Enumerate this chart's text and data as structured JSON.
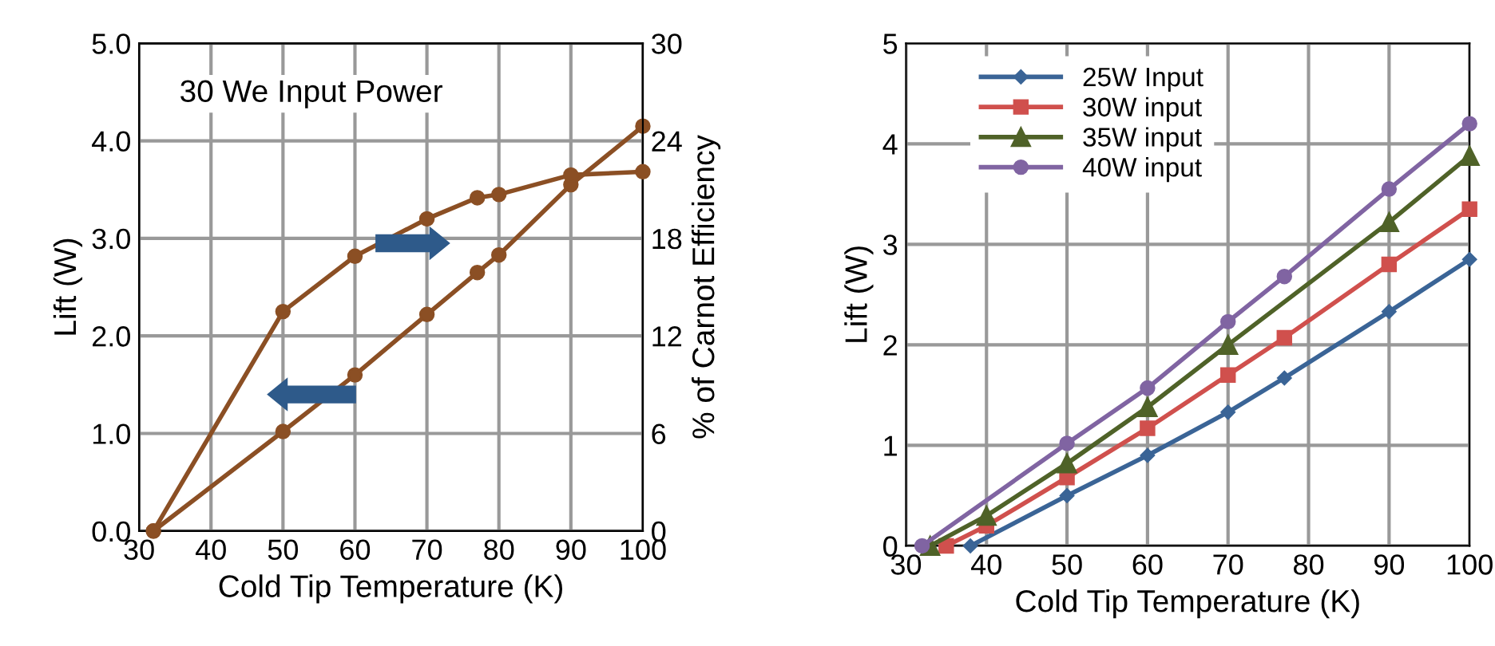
{
  "chart_data": [
    {
      "type": "line",
      "xlabel": "Cold Tip Temperature (K)",
      "ylabel": "Lift (W)",
      "y2label": "% of Carnot Efficiency",
      "annotations": [
        "30 We Input Power"
      ],
      "xlim": [
        30,
        100
      ],
      "xticks": [
        30,
        40,
        50,
        60,
        70,
        80,
        90,
        100
      ],
      "ylim": [
        0,
        5
      ],
      "yticks": [
        {
          "value": 0,
          "label": "0.0"
        },
        {
          "value": 1,
          "label": "1.0"
        },
        {
          "value": 2,
          "label": "2.0"
        },
        {
          "value": 3,
          "label": "3.0"
        },
        {
          "value": 4,
          "label": "4.0"
        },
        {
          "value": 5,
          "label": "5.0"
        }
      ],
      "y2lim": [
        0,
        30
      ],
      "y2ticks": [
        0,
        6,
        12,
        18,
        24,
        30
      ],
      "grid": true,
      "marker": "circle",
      "series": [
        {
          "color": "#8b4f24",
          "x": [
            32,
            50,
            60,
            70,
            77,
            80,
            90,
            100
          ],
          "values": [
            0,
            1.02,
            1.6,
            2.22,
            2.65,
            2.83,
            3.55,
            4.15
          ]
        },
        {
          "color": "#8b4f24",
          "axis": "y2",
          "x": [
            32,
            50,
            60,
            70,
            77,
            80,
            90,
            100
          ],
          "values": [
            0,
            13.5,
            16.9,
            19.2,
            20.5,
            20.7,
            21.9,
            22.1
          ]
        }
      ]
    },
    {
      "type": "line",
      "xlabel": "Cold Tip Temperature (K)",
      "ylabel": "Lift (W)",
      "xlim": [
        30,
        100
      ],
      "xticks": [
        30,
        40,
        50,
        60,
        70,
        80,
        90,
        100
      ],
      "ylim": [
        0,
        5
      ],
      "yticks": [
        0,
        1,
        2,
        3,
        4,
        5
      ],
      "grid": true,
      "legend": "top left",
      "series": [
        {
          "name": "25W Input",
          "color": "#3a6496",
          "marker": "diamond",
          "x": [
            38,
            50,
            60,
            70,
            77,
            90,
            100
          ],
          "values": [
            0,
            0.5,
            0.9,
            1.33,
            1.67,
            2.33,
            2.85
          ]
        },
        {
          "name": "30W input",
          "color": "#d0504d",
          "marker": "square",
          "x": [
            35,
            40,
            50,
            60,
            70,
            77,
            90,
            100
          ],
          "values": [
            0,
            0.2,
            0.68,
            1.17,
            1.7,
            2.07,
            2.8,
            3.35
          ]
        },
        {
          "name": "35W input",
          "color": "#4f6228",
          "marker": "triangle",
          "x": [
            33,
            40,
            50,
            60,
            70,
            90,
            100
          ],
          "values": [
            0,
            0.3,
            0.82,
            1.38,
            2.0,
            3.22,
            3.88
          ]
        },
        {
          "name": "40W input",
          "color": "#8064a2",
          "marker": "circle",
          "x": [
            32,
            50,
            60,
            70,
            77,
            90,
            100
          ],
          "values": [
            0,
            1.02,
            1.57,
            2.23,
            2.68,
            3.55,
            4.2
          ]
        }
      ]
    }
  ]
}
